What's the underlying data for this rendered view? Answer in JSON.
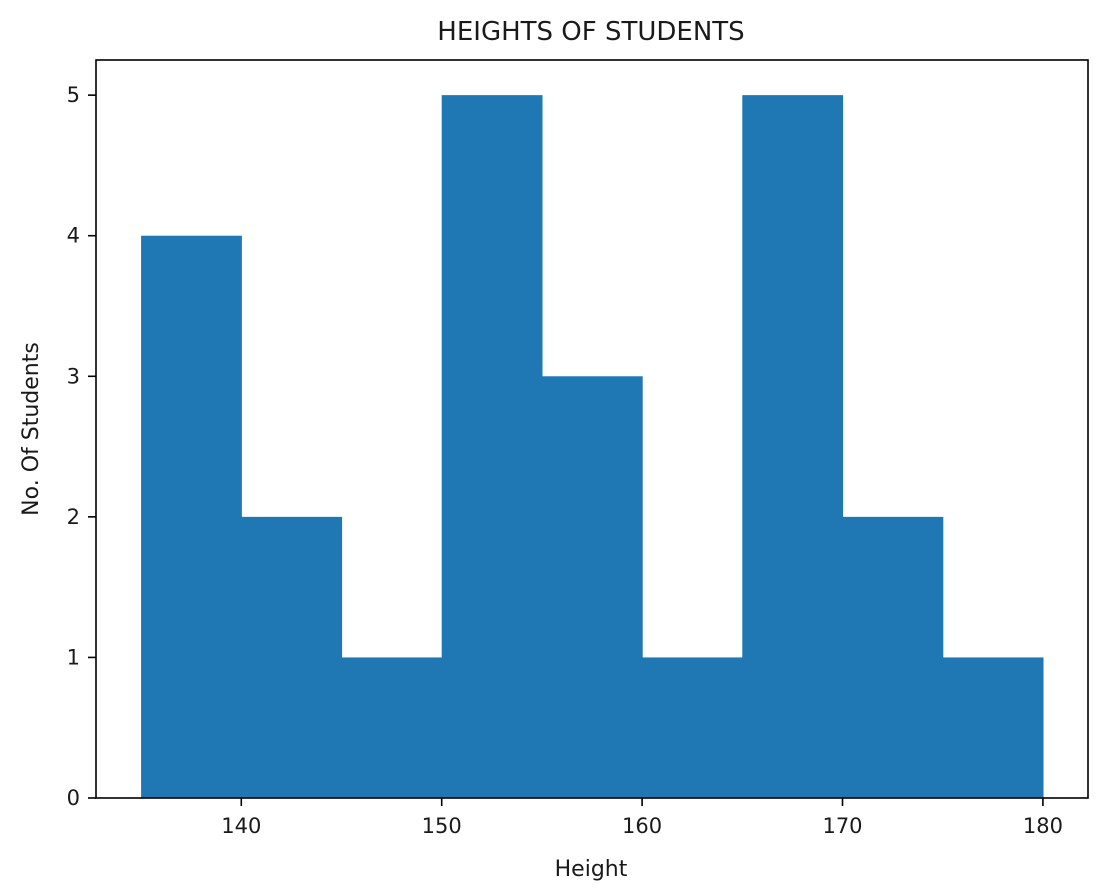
{
  "chart_data": {
    "type": "bar",
    "title": "HEIGHTS OF STUDENTS",
    "xlabel": "Height",
    "ylabel": "No. Of Students",
    "bin_edges": [
      135,
      140,
      145,
      150,
      155,
      160,
      165,
      170,
      175,
      180
    ],
    "values": [
      4,
      2,
      1,
      5,
      3,
      1,
      5,
      2,
      1
    ],
    "xlim": [
      132.75,
      182.25
    ],
    "ylim": [
      0,
      5.25
    ],
    "xticks": [
      140,
      150,
      160,
      170,
      180
    ],
    "yticks": [
      0,
      1,
      2,
      3,
      4,
      5
    ],
    "bar_color": "#1f77b4",
    "grid": false,
    "legend": "none"
  }
}
